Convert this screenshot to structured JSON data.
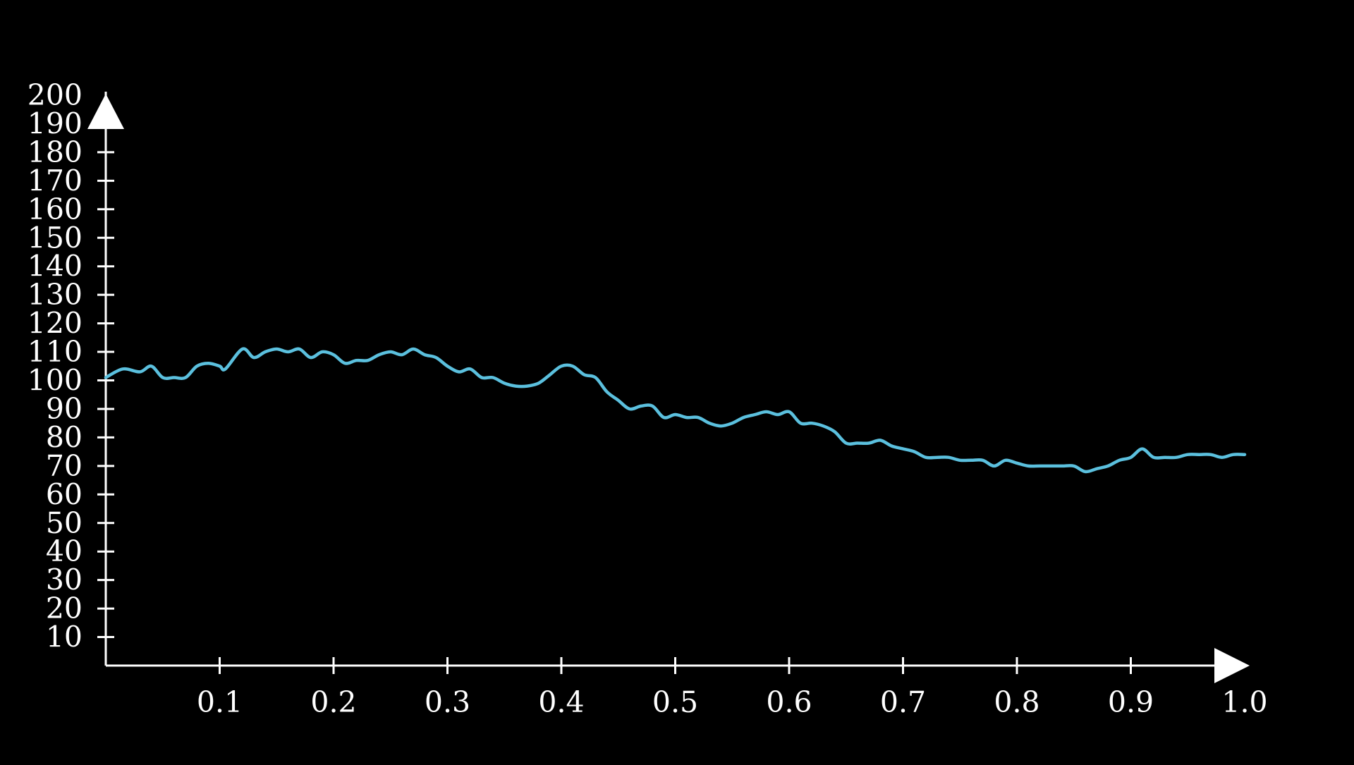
{
  "chart_data": {
    "type": "line",
    "title": "",
    "xlabel": "",
    "ylabel": "",
    "xlim": [
      0,
      1.0
    ],
    "ylim": [
      0,
      200
    ],
    "x_ticks": [
      0.1,
      0.2,
      0.3,
      0.4,
      0.5,
      0.6,
      0.7,
      0.8,
      0.9,
      1.0
    ],
    "x_tick_labels": [
      "0.1",
      "0.2",
      "0.3",
      "0.4",
      "0.5",
      "0.6",
      "0.7",
      "0.8",
      "0.9",
      "1.0"
    ],
    "y_ticks": [
      10,
      20,
      30,
      40,
      50,
      60,
      70,
      80,
      90,
      100,
      110,
      120,
      130,
      140,
      150,
      160,
      170,
      180,
      190,
      200
    ],
    "y_tick_labels": [
      "10",
      "20",
      "30",
      "40",
      "50",
      "60",
      "70",
      "80",
      "90",
      "100",
      "110",
      "120",
      "130",
      "140",
      "150",
      "160",
      "170",
      "180",
      "190",
      "200"
    ],
    "grid": false,
    "axis_color": "#ffffff",
    "background": "#000000",
    "series": [
      {
        "color": "#5bc0de",
        "x": [
          0.0,
          0.015,
          0.03,
          0.04,
          0.05,
          0.06,
          0.07,
          0.08,
          0.09,
          0.1,
          0.105,
          0.12,
          0.13,
          0.14,
          0.15,
          0.16,
          0.17,
          0.18,
          0.19,
          0.2,
          0.21,
          0.22,
          0.23,
          0.24,
          0.25,
          0.26,
          0.27,
          0.28,
          0.29,
          0.3,
          0.31,
          0.32,
          0.33,
          0.34,
          0.35,
          0.36,
          0.37,
          0.38,
          0.39,
          0.4,
          0.41,
          0.42,
          0.43,
          0.44,
          0.45,
          0.46,
          0.47,
          0.48,
          0.49,
          0.5,
          0.51,
          0.52,
          0.53,
          0.54,
          0.55,
          0.56,
          0.57,
          0.58,
          0.59,
          0.6,
          0.61,
          0.62,
          0.63,
          0.64,
          0.65,
          0.66,
          0.67,
          0.68,
          0.69,
          0.7,
          0.71,
          0.72,
          0.73,
          0.74,
          0.75,
          0.76,
          0.77,
          0.78,
          0.79,
          0.8,
          0.81,
          0.82,
          0.83,
          0.84,
          0.85,
          0.86,
          0.87,
          0.88,
          0.89,
          0.9,
          0.91,
          0.92,
          0.93,
          0.94,
          0.95,
          0.96,
          0.97,
          0.98,
          0.99,
          1.0
        ],
        "y": [
          101,
          104,
          103,
          105,
          101,
          101,
          101,
          105,
          106,
          105,
          104,
          111,
          108,
          110,
          111,
          110,
          111,
          108,
          110,
          109,
          106,
          107,
          107,
          109,
          110,
          109,
          111,
          109,
          108,
          105,
          103,
          104,
          101,
          101,
          99,
          98,
          98,
          99,
          102,
          105,
          105,
          102,
          101,
          96,
          93,
          90,
          91,
          91,
          87,
          88,
          87,
          87,
          85,
          84,
          85,
          87,
          88,
          89,
          88,
          89,
          85,
          85,
          84,
          82,
          78,
          78,
          78,
          79,
          77,
          76,
          75,
          73,
          73,
          73,
          72,
          72,
          72,
          70,
          72,
          71,
          70,
          70,
          70,
          70,
          70,
          68,
          69,
          70,
          72,
          73,
          76,
          73,
          73,
          73,
          74,
          74,
          74,
          73,
          74,
          74
        ]
      }
    ]
  }
}
